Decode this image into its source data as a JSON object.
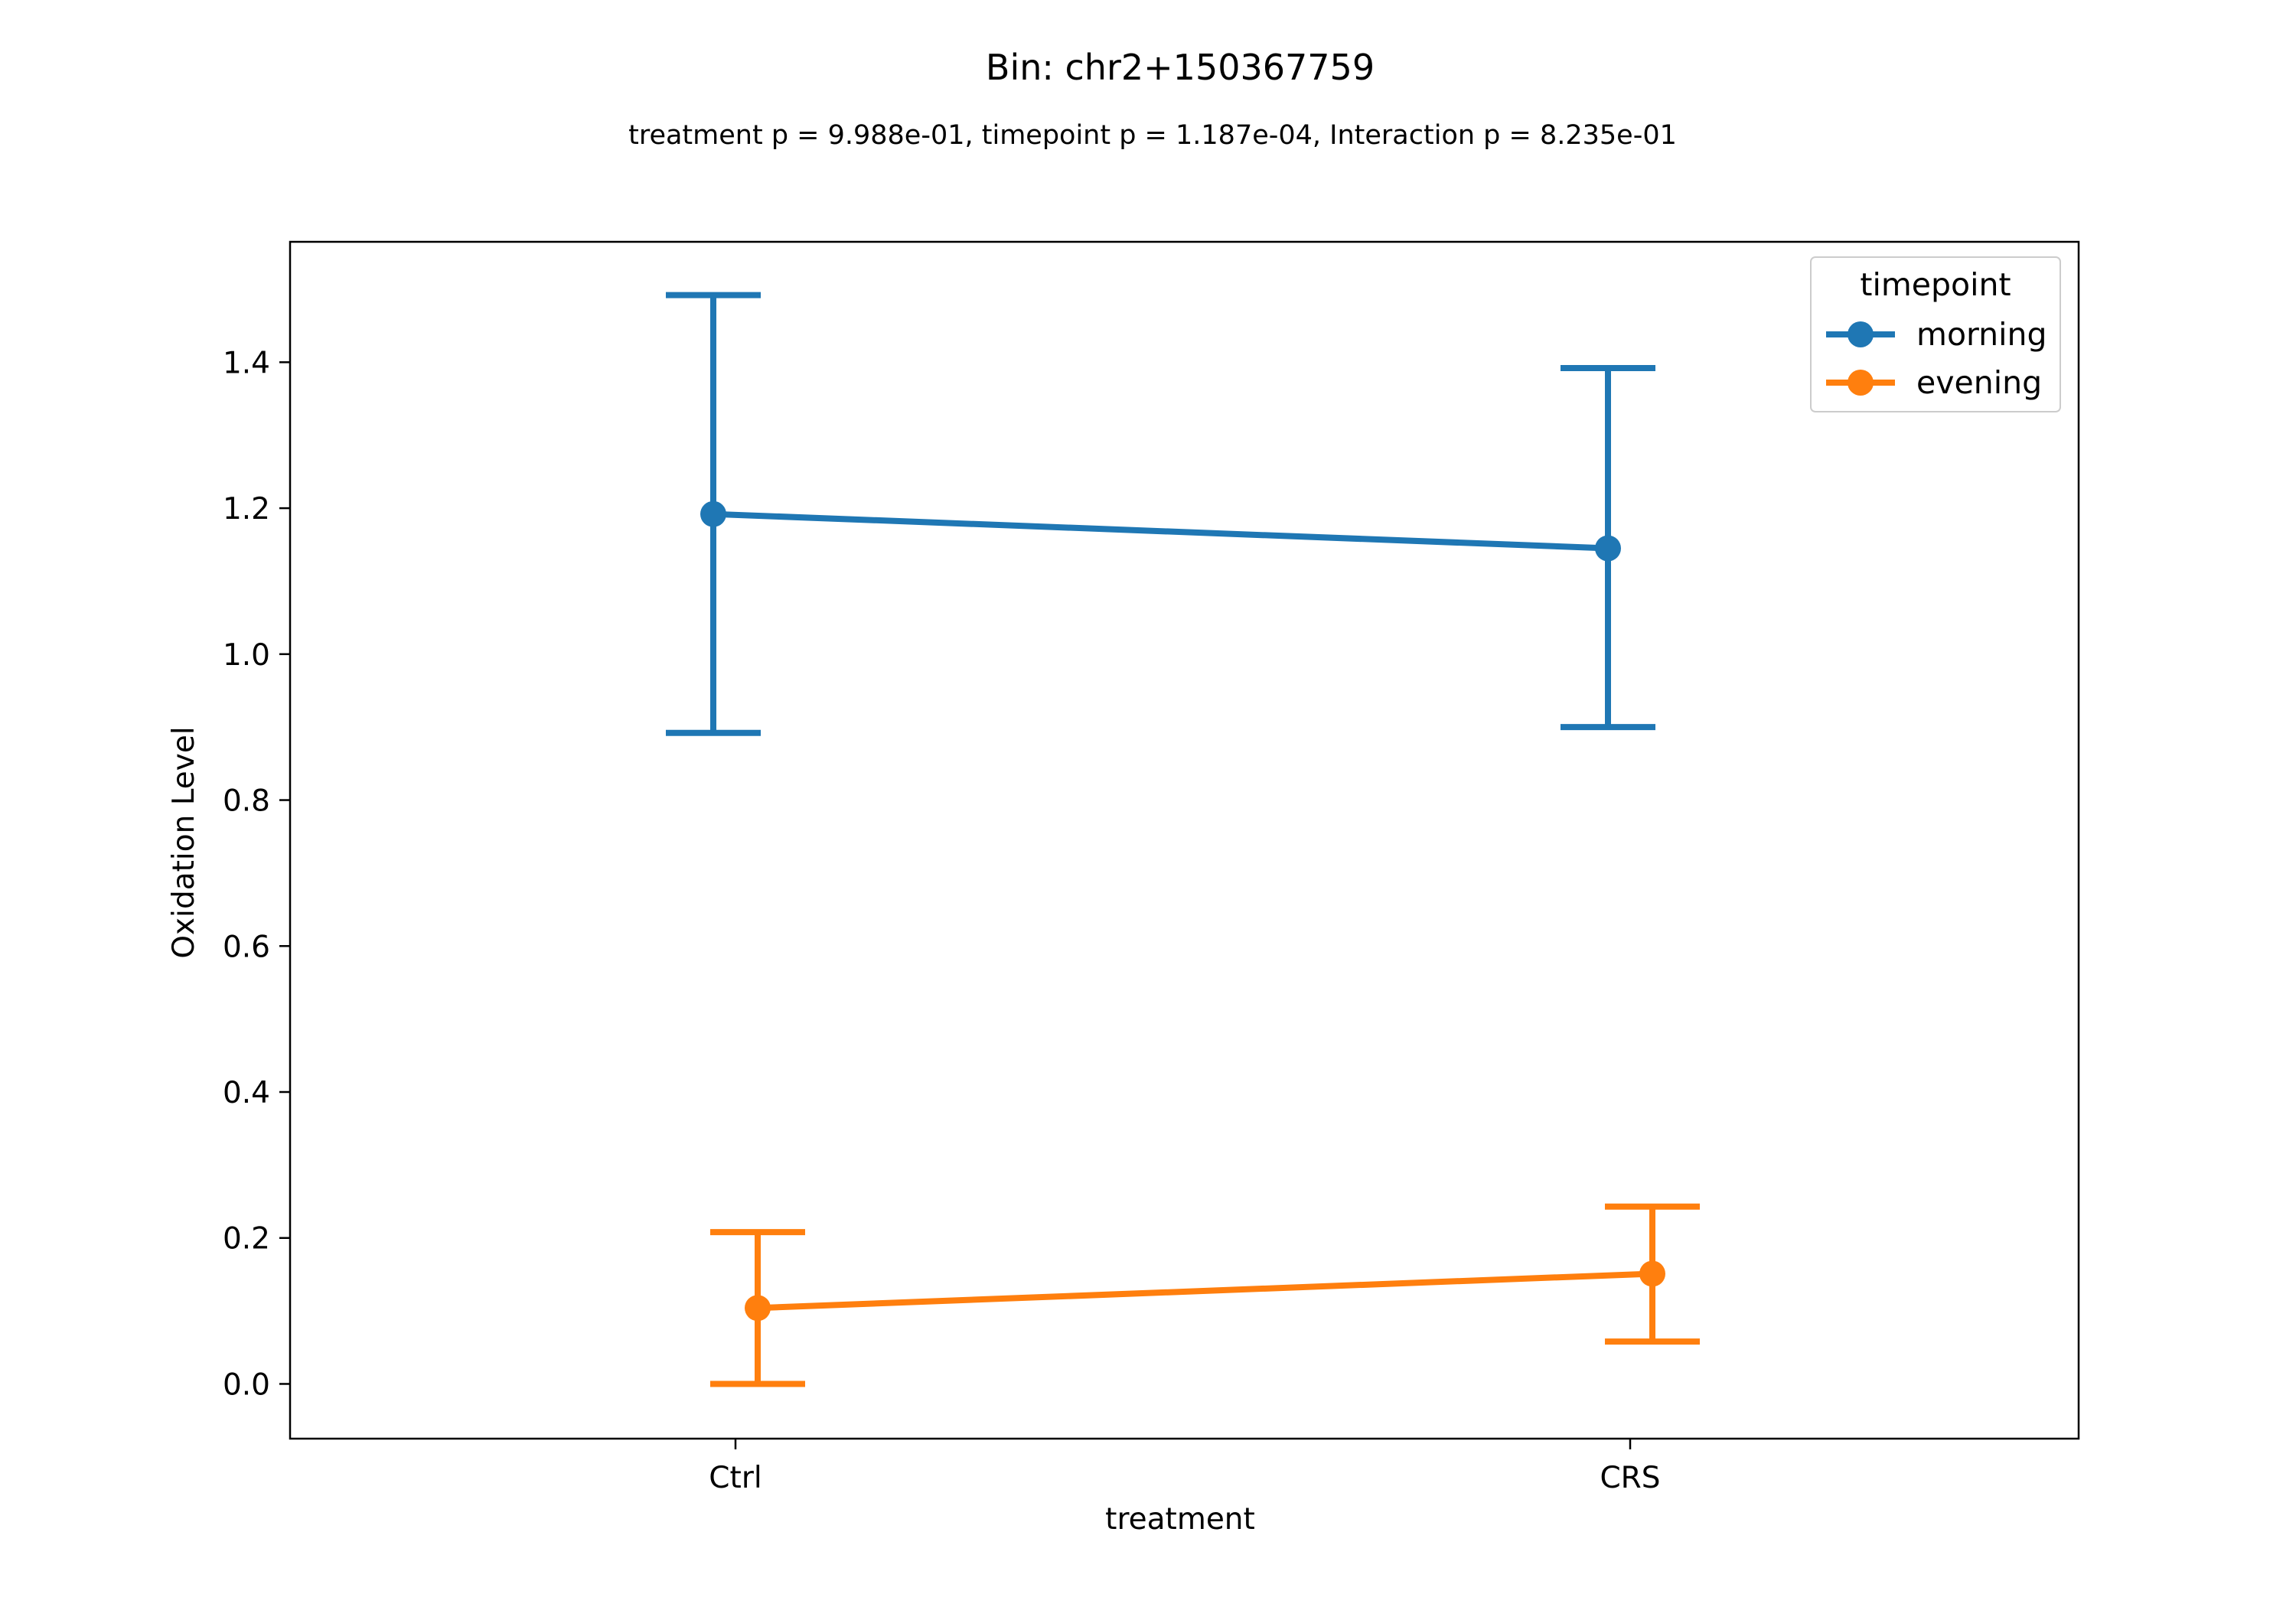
{
  "chart_data": {
    "type": "line",
    "title": "Bin: chr2+150367759",
    "subtitle": "treatment p = 9.988e-01, timepoint p = 1.187e-04, Interaction p = 8.235e-01",
    "xlabel": "treatment",
    "ylabel": "Oxidation Level",
    "categories": [
      "Ctrl",
      "CRS"
    ],
    "ylim": [
      -0.075,
      1.565
    ],
    "yticks": [
      0.0,
      0.2,
      0.4,
      0.6,
      0.8,
      1.0,
      1.2,
      1.4
    ],
    "ytick_labels": [
      "0.0",
      "0.2",
      "0.4",
      "0.6",
      "0.8",
      "1.0",
      "1.2",
      "1.4"
    ],
    "grid": false,
    "legend": {
      "title": "timepoint",
      "position": "top-right"
    },
    "series": [
      {
        "name": "morning",
        "color": "#1f77b4",
        "values": [
          1.192,
          1.145
        ],
        "err_low": [
          0.892,
          0.9
        ],
        "err_high": [
          1.492,
          1.392
        ]
      },
      {
        "name": "evening",
        "color": "#ff7f0e",
        "values": [
          0.104,
          0.151
        ],
        "err_low": [
          0.0,
          0.058
        ],
        "err_high": [
          0.208,
          0.243
        ]
      }
    ]
  }
}
